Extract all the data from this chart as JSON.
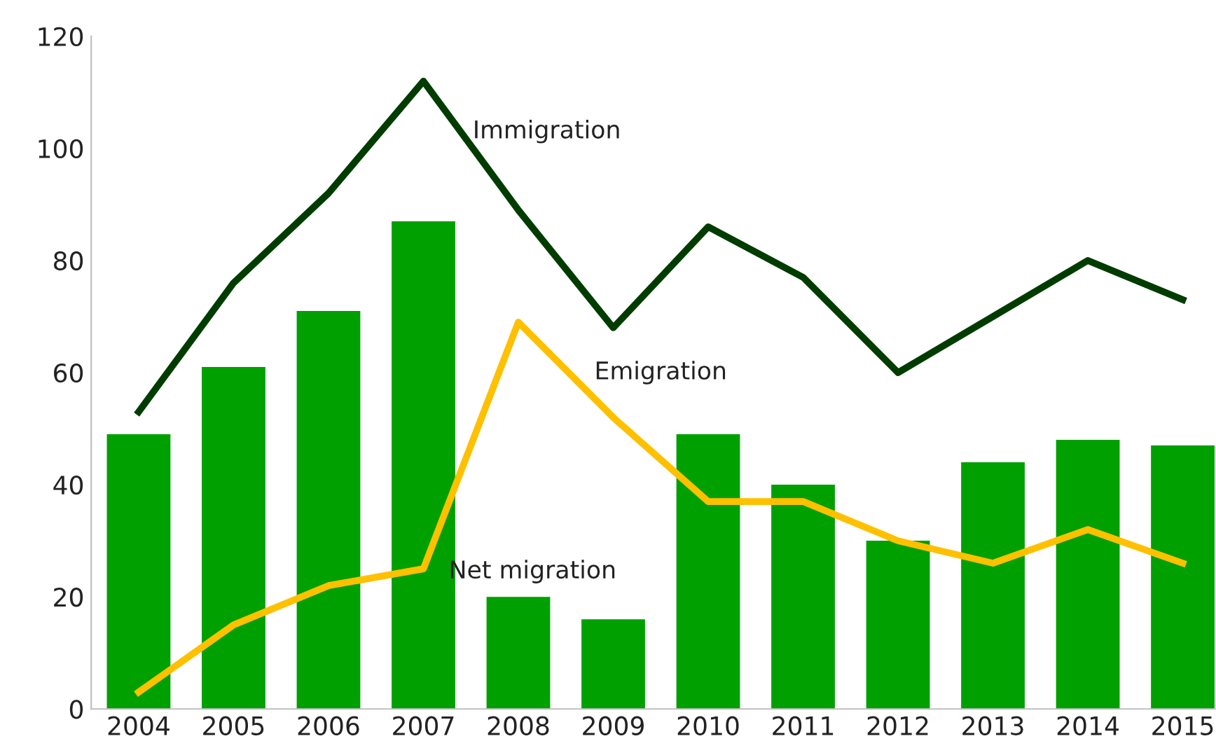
{
  "chart_data": {
    "type": "bar",
    "categories": [
      "2004",
      "2005",
      "2006",
      "2007",
      "2008",
      "2009",
      "2010",
      "2011",
      "2012",
      "2013",
      "2014",
      "2015"
    ],
    "series": [
      {
        "name": "Net migration",
        "color": "#00a000",
        "values": [
          49,
          61,
          71,
          87,
          20,
          16,
          49,
          40,
          30,
          44,
          48,
          47
        ]
      },
      {
        "name": "Immigration",
        "type": "line",
        "color": "#003c00",
        "values": [
          53,
          76,
          92,
          112,
          89,
          68,
          86,
          77,
          60,
          70,
          80,
          73
        ]
      },
      {
        "name": "Emigration",
        "type": "line",
        "color": "#ffc000",
        "values": [
          3,
          15,
          22,
          25,
          69,
          52,
          37,
          37,
          30,
          26,
          32,
          26
        ]
      }
    ],
    "ylim": [
      0,
      120
    ],
    "yticks": [
      0,
      20,
      40,
      60,
      80,
      100,
      120
    ],
    "grid": false,
    "legend": false
  }
}
